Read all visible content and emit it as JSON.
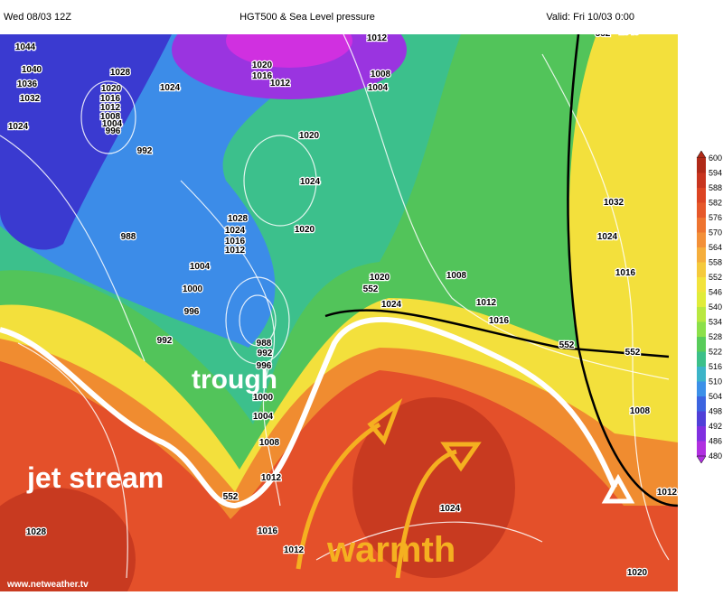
{
  "header": {
    "left": "Wed 08/03 12Z",
    "center": "HGT500 & Sea Level pressure",
    "right": "Valid: Fri 10/03 0:00"
  },
  "annotations": {
    "trough": "trough",
    "jet_stream": "jet stream",
    "warmth": "warmth"
  },
  "credit": "www.netweather.tv",
  "colorbar": {
    "labels": [
      600,
      594,
      588,
      582,
      576,
      570,
      564,
      558,
      552,
      546,
      540,
      534,
      528,
      522,
      516,
      510,
      504,
      498,
      492,
      486,
      480
    ]
  },
  "pressure_labels": [
    1044,
    1040,
    1036,
    1032,
    1024,
    1028,
    1020,
    1016,
    1012,
    1008,
    1004,
    996,
    1024,
    992,
    988,
    1004,
    1000,
    996,
    992,
    1028,
    1024,
    1016,
    1012,
    1020,
    1016,
    1012,
    1012,
    1008,
    1004,
    1020,
    1024,
    1020,
    1020,
    1024,
    552,
    1008,
    1012,
    1016,
    552,
    552,
    1008,
    1032,
    1024,
    1016,
    1040,
    552,
    988,
    992,
    996,
    1000,
    1004,
    1008,
    1012,
    552,
    1016,
    1028,
    1024,
    1012,
    1020,
    1012
  ]
}
